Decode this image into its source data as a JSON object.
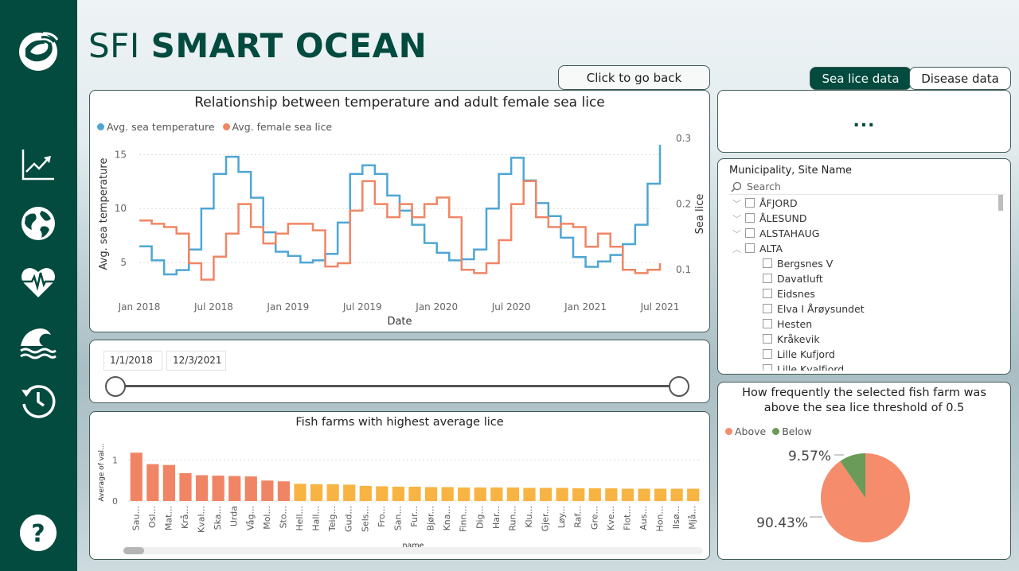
{
  "brand": {
    "prefix": "SFI",
    "name": "SMART OCEAN"
  },
  "sidebar": {
    "items": [
      {
        "icon": "line-chart-icon"
      },
      {
        "icon": "globe-icon"
      },
      {
        "icon": "heart-pulse-icon"
      },
      {
        "icon": "wave-icon"
      },
      {
        "icon": "history-icon"
      },
      {
        "icon": "help-icon"
      }
    ]
  },
  "buttons": {
    "back": "Click to go back",
    "sea_lice": "Sea lice data",
    "disease": "Disease data"
  },
  "colors": {
    "sidebar": "#034a3f",
    "temperature": "#4ea6d3",
    "lice": "#f08565",
    "bar_high": "#f08565",
    "bar_low": "#f7b443",
    "pie_above": "#f58c6c",
    "pie_below": "#6b9b58"
  },
  "more_menu": "...",
  "main_chart": {
    "chart_data": {
      "type": "line",
      "title": "Relationship between temperature and adult female sea lice",
      "xlabel": "Date",
      "ylabel": "Avg. sea temperature",
      "y2label": "Sea lice",
      "x_ticks": [
        "Jan 2018",
        "Jul 2018",
        "Jan 2019",
        "Jul 2019",
        "Jan 2020",
        "Jul 2020",
        "Jan 2021",
        "Jul 2021"
      ],
      "y_ticks": [
        "5",
        "10",
        "15"
      ],
      "y2_ticks": [
        "0.1",
        "0.2",
        "0.3"
      ],
      "ylim": [
        2.5,
        16.5
      ],
      "y2lim": [
        0.07,
        0.3
      ],
      "legend_position": "top-left",
      "series": [
        {
          "name": "Avg. sea temperature",
          "axis": "left",
          "x": [
            "2018-01",
            "2018-02",
            "2018-03",
            "2018-04",
            "2018-05",
            "2018-06",
            "2018-07",
            "2018-08",
            "2018-09",
            "2018-10",
            "2018-11",
            "2018-12",
            "2019-01",
            "2019-02",
            "2019-03",
            "2019-04",
            "2019-05",
            "2019-06",
            "2019-07",
            "2019-08",
            "2019-09",
            "2019-10",
            "2019-11",
            "2019-12",
            "2020-01",
            "2020-02",
            "2020-03",
            "2020-04",
            "2020-05",
            "2020-06",
            "2020-07",
            "2020-08",
            "2020-09",
            "2020-10",
            "2020-11",
            "2020-12",
            "2021-01",
            "2021-02",
            "2021-03",
            "2021-04",
            "2021-05",
            "2021-06",
            "2021-07"
          ],
          "values": [
            6.5,
            5.2,
            3.9,
            4.3,
            6.2,
            10.0,
            13.2,
            14.8,
            13.4,
            11.0,
            7.8,
            6.0,
            5.6,
            5.0,
            5.2,
            5.8,
            8.7,
            13.2,
            14.0,
            13.2,
            11.2,
            9.8,
            8.5,
            6.8,
            5.9,
            5.2,
            5.3,
            6.2,
            10.0,
            13.2,
            14.7,
            12.6,
            10.5,
            9.3,
            7.3,
            5.5,
            4.6,
            5.1,
            5.7,
            6.7,
            8.5,
            12.3,
            15.9
          ]
        },
        {
          "name": "Avg. female sea lice",
          "axis": "right",
          "x": [
            "2018-01",
            "2018-02",
            "2018-03",
            "2018-04",
            "2018-05",
            "2018-06",
            "2018-07",
            "2018-08",
            "2018-09",
            "2018-10",
            "2018-11",
            "2018-12",
            "2019-01",
            "2019-02",
            "2019-03",
            "2019-04",
            "2019-05",
            "2019-06",
            "2019-07",
            "2019-08",
            "2019-09",
            "2019-10",
            "2019-11",
            "2019-12",
            "2020-01",
            "2020-02",
            "2020-03",
            "2020-04",
            "2020-05",
            "2020-06",
            "2020-07",
            "2020-08",
            "2020-09",
            "2020-10",
            "2020-11",
            "2020-12",
            "2021-01",
            "2021-02",
            "2021-03",
            "2021-04",
            "2021-05",
            "2021-06",
            "2021-07"
          ],
          "values": [
            0.175,
            0.17,
            0.165,
            0.155,
            0.11,
            0.085,
            0.12,
            0.155,
            0.2,
            0.165,
            0.14,
            0.155,
            0.17,
            0.17,
            0.16,
            0.105,
            0.11,
            0.19,
            0.235,
            0.2,
            0.18,
            0.2,
            0.18,
            0.2,
            0.21,
            0.18,
            0.1,
            0.095,
            0.11,
            0.145,
            0.2,
            0.235,
            0.18,
            0.165,
            0.17,
            0.165,
            0.135,
            0.155,
            0.135,
            0.1,
            0.095,
            0.1,
            0.11
          ]
        }
      ]
    }
  },
  "date_slicer": {
    "start": "1/1/2018",
    "end": "12/3/2021"
  },
  "farms_chart": {
    "chart_data": {
      "type": "bar",
      "title": "Fish farms with highest average lice",
      "xlabel": "name",
      "ylabel": "Average of val...",
      "y_ticks": [
        "0",
        "1"
      ],
      "ylim": [
        0,
        1.3
      ],
      "categories": [
        "Sau...",
        "Osl...",
        "Mat...",
        "Krå...",
        "Kval...",
        "Ska...",
        "Urda",
        "Våg...",
        "Mol...",
        "Sto...",
        "Hell...",
        "Hall...",
        "Teig...",
        "Gud...",
        "Sels...",
        "Fro...",
        "San...",
        "Fur...",
        "Bjør...",
        "Kna...",
        "Finn...",
        "Dig...",
        "Har...",
        "Run...",
        "Klu...",
        "Gjer...",
        "Løy...",
        "Raf...",
        "Gre...",
        "Kve...",
        "Flot...",
        "Aus...",
        "Hon...",
        "Ilsø...",
        "Mjå..."
      ],
      "values": [
        1.18,
        0.9,
        0.88,
        0.68,
        0.63,
        0.62,
        0.61,
        0.6,
        0.5,
        0.48,
        0.42,
        0.41,
        0.41,
        0.4,
        0.37,
        0.36,
        0.35,
        0.35,
        0.34,
        0.34,
        0.33,
        0.33,
        0.33,
        0.33,
        0.32,
        0.32,
        0.32,
        0.31,
        0.31,
        0.31,
        0.3,
        0.3,
        0.3,
        0.3,
        0.3
      ]
    }
  },
  "slicer": {
    "title": "Municipality, Site Name",
    "search_placeholder": "Search",
    "items": [
      {
        "label": "ÅFJORD",
        "level": 0,
        "chev": "﹀"
      },
      {
        "label": "ÅLESUND",
        "level": 0,
        "chev": "﹀"
      },
      {
        "label": "ALSTAHAUG",
        "level": 0,
        "chev": "﹀"
      },
      {
        "label": "ALTA",
        "level": 0,
        "chev": "︿"
      },
      {
        "label": "Bergsnes V",
        "level": 1
      },
      {
        "label": "Davatluft",
        "level": 1
      },
      {
        "label": "Eidsnes",
        "level": 1
      },
      {
        "label": "Elva I Årøysundet",
        "level": 1
      },
      {
        "label": "Hesten",
        "level": 1
      },
      {
        "label": "Kråkevik",
        "level": 1
      },
      {
        "label": "Lille Kufjord",
        "level": 1
      },
      {
        "label": "Lille Kvalfjord",
        "level": 1
      }
    ]
  },
  "pie": {
    "chart_data": {
      "type": "pie",
      "title_line1": "How frequently the selected fish farm was",
      "title_line2": "above the sea lice threshold of 0.5",
      "labels": [
        "Above",
        "Below"
      ],
      "values": [
        90.43,
        9.57
      ],
      "value_labels": [
        "90.43%",
        "9.57%"
      ],
      "legend_position": "top-left"
    }
  }
}
